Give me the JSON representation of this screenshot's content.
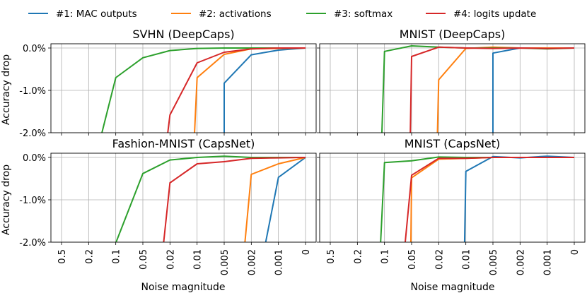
{
  "legend": [
    {
      "label": "#1: MAC outputs",
      "color": "#1f77b4"
    },
    {
      "label": "#2: activations",
      "color": "#ff7f0e"
    },
    {
      "label": "#3: softmax",
      "color": "#2ca02c"
    },
    {
      "label": "#4: logits update",
      "color": "#d62728"
    }
  ],
  "xlabel": "Noise magnitude",
  "ylabel": "Accuracy drop",
  "chart_data": [
    {
      "type": "line",
      "title": "SVHN (DeepCaps)",
      "categories": [
        "0.5",
        "0.2",
        "0.1",
        "0.05",
        "0.02",
        "0.01",
        "0.005",
        "0.002",
        "0.001",
        "0"
      ],
      "yticks": [
        "0.0%",
        "-1.0%",
        "-2.0%"
      ],
      "ylim": [
        -2.0,
        0.1
      ],
      "series": [
        {
          "name": "#1: MAC outputs",
          "points": [
            [
              6,
              -2.1
            ],
            [
              6,
              -0.83
            ],
            [
              7,
              -0.16
            ],
            [
              8,
              -0.05
            ],
            [
              9,
              0.0
            ]
          ]
        },
        {
          "name": "#2: activations",
          "points": [
            [
              4.9,
              -2.1
            ],
            [
              5,
              -0.7
            ],
            [
              6,
              -0.15
            ],
            [
              7,
              -0.02
            ],
            [
              8,
              -0.01
            ],
            [
              9,
              0.0
            ]
          ]
        },
        {
          "name": "#3: softmax",
          "points": [
            [
              1.45,
              -2.1
            ],
            [
              2,
              -0.7
            ],
            [
              3,
              -0.23
            ],
            [
              4,
              -0.06
            ],
            [
              5,
              -0.01
            ],
            [
              6,
              0.0
            ],
            [
              7,
              0.0
            ],
            [
              8,
              0.0
            ],
            [
              9,
              0.0
            ]
          ]
        },
        {
          "name": "#4: logits update",
          "points": [
            [
              3.9,
              -2.1
            ],
            [
              4,
              -1.58
            ],
            [
              5,
              -0.35
            ],
            [
              6,
              -0.1
            ],
            [
              7,
              -0.02
            ],
            [
              8,
              0.0
            ],
            [
              9,
              0.0
            ]
          ]
        }
      ]
    },
    {
      "type": "line",
      "title": "MNIST (DeepCaps)",
      "categories": [
        "0.5",
        "0.2",
        "0.1",
        "0.05",
        "0.02",
        "0.01",
        "0.005",
        "0.002",
        "0.001",
        "0"
      ],
      "yticks": [
        "0.0%",
        "-1.0%",
        "-2.0%"
      ],
      "ylim": [
        -2.0,
        0.1
      ],
      "series": [
        {
          "name": "#1: MAC outputs",
          "points": [
            [
              6,
              -2.1
            ],
            [
              6,
              -0.12
            ],
            [
              7,
              0.0
            ],
            [
              8,
              0.0
            ],
            [
              9,
              0.0
            ]
          ]
        },
        {
          "name": "#2: activations",
          "points": [
            [
              3.95,
              -2.1
            ],
            [
              4,
              -0.75
            ],
            [
              5,
              -0.01
            ],
            [
              6,
              0.02
            ],
            [
              7,
              0.0
            ],
            [
              8,
              0.0
            ],
            [
              9,
              0.0
            ]
          ]
        },
        {
          "name": "#3: softmax",
          "points": [
            [
              1.9,
              -2.1
            ],
            [
              2,
              -0.08
            ],
            [
              3,
              0.05
            ],
            [
              4,
              0.02
            ],
            [
              5,
              0.0
            ],
            [
              6,
              0.0
            ],
            [
              7,
              0.0
            ],
            [
              8,
              -0.02
            ],
            [
              9,
              0.0
            ]
          ]
        },
        {
          "name": "#4: logits update",
          "points": [
            [
              2.95,
              -2.1
            ],
            [
              3,
              -0.2
            ],
            [
              4,
              0.02
            ],
            [
              5,
              0.0
            ],
            [
              6,
              -0.01
            ],
            [
              7,
              0.0
            ],
            [
              8,
              -0.01
            ],
            [
              9,
              0.0
            ]
          ]
        }
      ]
    },
    {
      "type": "line",
      "title": "Fashion-MNIST (CapsNet)",
      "categories": [
        "0.5",
        "0.2",
        "0.1",
        "0.05",
        "0.02",
        "0.01",
        "0.005",
        "0.002",
        "0.001",
        "0"
      ],
      "yticks": [
        "0.0%",
        "-1.0%",
        "-2.0%"
      ],
      "ylim": [
        -2.0,
        0.1
      ],
      "series": [
        {
          "name": "#1: MAC outputs",
          "points": [
            [
              7.5,
              -2.1
            ],
            [
              8,
              -0.47
            ],
            [
              9,
              0.0
            ]
          ]
        },
        {
          "name": "#2: activations",
          "points": [
            [
              6.75,
              -2.1
            ],
            [
              7,
              -0.4
            ],
            [
              8,
              -0.15
            ],
            [
              9,
              0.0
            ]
          ]
        },
        {
          "name": "#3: softmax",
          "points": [
            [
              1.95,
              -2.1
            ],
            [
              3,
              -0.38
            ],
            [
              4,
              -0.06
            ],
            [
              5,
              0.0
            ],
            [
              6,
              0.03
            ],
            [
              7,
              0.0
            ],
            [
              8,
              0.0
            ],
            [
              9,
              0.0
            ]
          ]
        },
        {
          "name": "#4: logits update",
          "points": [
            [
              3.75,
              -2.1
            ],
            [
              4,
              -0.6
            ],
            [
              5,
              -0.15
            ],
            [
              6,
              -0.1
            ],
            [
              7,
              -0.02
            ],
            [
              8,
              -0.01
            ],
            [
              9,
              0.0
            ]
          ]
        }
      ]
    },
    {
      "type": "line",
      "title": "MNIST (CapsNet)",
      "categories": [
        "0.5",
        "0.2",
        "0.1",
        "0.05",
        "0.02",
        "0.01",
        "0.005",
        "0.002",
        "0.001",
        "0"
      ],
      "yticks": [
        "0.0%",
        "-1.0%",
        "-2.0%"
      ],
      "ylim": [
        -2.0,
        0.1
      ],
      "series": [
        {
          "name": "#1: MAC outputs",
          "points": [
            [
              4.95,
              -2.1
            ],
            [
              5,
              -0.33
            ],
            [
              6,
              0.02
            ],
            [
              7,
              -0.01
            ],
            [
              8,
              0.03
            ],
            [
              9,
              0.0
            ]
          ]
        },
        {
          "name": "#2: activations",
          "points": [
            [
              2.97,
              -2.1
            ],
            [
              3,
              -0.48
            ],
            [
              4,
              -0.04
            ],
            [
              5,
              -0.02
            ],
            [
              6,
              0.0
            ],
            [
              7,
              0.0
            ],
            [
              8,
              0.0
            ],
            [
              9,
              0.0
            ]
          ]
        },
        {
          "name": "#3: softmax",
          "points": [
            [
              1.85,
              -2.1
            ],
            [
              2,
              -0.12
            ],
            [
              3,
              -0.08
            ],
            [
              4,
              0.01
            ],
            [
              5,
              0.0
            ],
            [
              6,
              0.0
            ],
            [
              7,
              0.0
            ],
            [
              8,
              0.0
            ],
            [
              9,
              0.0
            ]
          ]
        },
        {
          "name": "#4: logits update",
          "points": [
            [
              2.75,
              -2.1
            ],
            [
              3,
              -0.42
            ],
            [
              4,
              -0.02
            ],
            [
              5,
              -0.02
            ],
            [
              6,
              0.0
            ],
            [
              7,
              0.0
            ],
            [
              8,
              0.0
            ],
            [
              9,
              0.0
            ]
          ]
        }
      ]
    }
  ]
}
